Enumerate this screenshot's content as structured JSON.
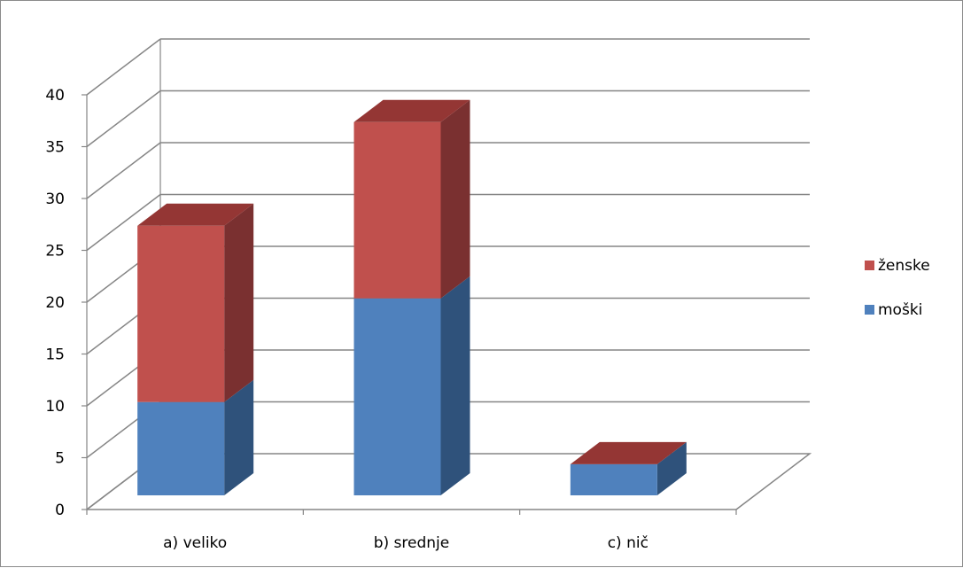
{
  "chart_data": {
    "type": "bar",
    "stacked": true,
    "three_d": true,
    "categories": [
      "a) veliko",
      "b) srednje",
      "c) nič"
    ],
    "series": [
      {
        "name": "moški",
        "values": [
          9,
          19,
          3
        ],
        "color": "#4f81bd",
        "side_color": "#2f527b",
        "top_color": "#385d8a"
      },
      {
        "name": "ženske",
        "values": [
          17,
          17,
          0
        ],
        "color": "#c0504d",
        "side_color": "#7a3030",
        "top_color": "#943634"
      }
    ],
    "ylim": [
      0,
      40
    ],
    "yticks": [
      0,
      5,
      10,
      15,
      20,
      25,
      30,
      35,
      40
    ],
    "grid": true,
    "legend_position": "right",
    "title": "",
    "xlabel": "",
    "ylabel": ""
  }
}
